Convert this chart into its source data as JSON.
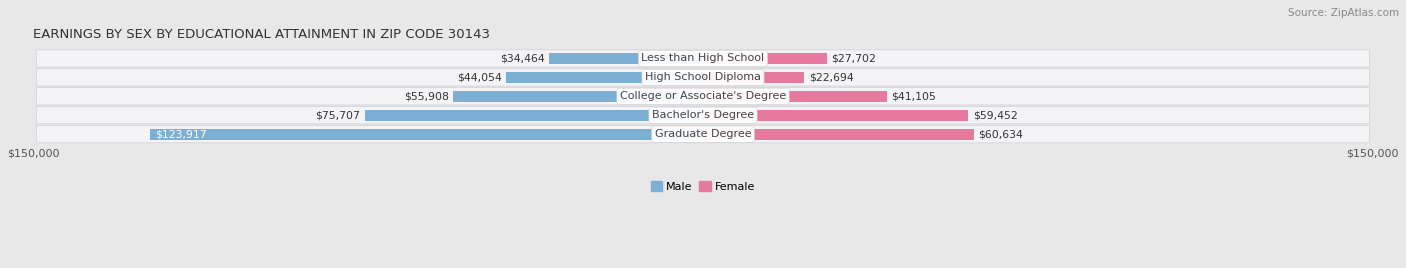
{
  "title": "EARNINGS BY SEX BY EDUCATIONAL ATTAINMENT IN ZIP CODE 30143",
  "source": "Source: ZipAtlas.com",
  "categories": [
    "Less than High School",
    "High School Diploma",
    "College or Associate's Degree",
    "Bachelor's Degree",
    "Graduate Degree"
  ],
  "male_values": [
    34464,
    44054,
    55908,
    75707,
    123917
  ],
  "female_values": [
    27702,
    22694,
    41105,
    59452,
    60634
  ],
  "male_color": "#7bafd4",
  "female_color": "#e8799e",
  "male_label": "Male",
  "female_label": "Female",
  "bar_height": 0.58,
  "xlim": 150000,
  "x_tick_left": "$150,000",
  "x_tick_right": "$150,000",
  "bg_color": "#e8e8e8",
  "row_color": "#f4f4f6",
  "title_fontsize": 9.5,
  "source_fontsize": 7.5,
  "label_fontsize": 8,
  "value_fontsize": 7.8,
  "category_fontsize": 8
}
